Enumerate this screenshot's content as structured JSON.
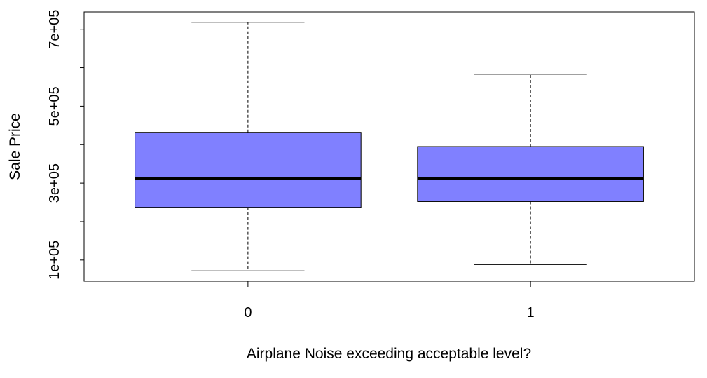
{
  "chart_data": {
    "type": "boxplot",
    "title": "",
    "xlabel": "Airplane Noise exceeding acceptable level?",
    "ylabel": "Sale Price",
    "ylim": [
      45000,
      745000
    ],
    "y_ticks": [
      100000,
      200000,
      300000,
      400000,
      500000,
      600000,
      700000
    ],
    "y_tick_labels": [
      {
        "value": 100000,
        "label": "1e+05"
      },
      {
        "value": 300000,
        "label": "3e+05"
      },
      {
        "value": 500000,
        "label": "5e+05"
      },
      {
        "value": 700000,
        "label": "7e+05"
      }
    ],
    "categories": [
      "0",
      "1"
    ],
    "boxes": [
      {
        "category": "0",
        "whisker_low": 72000,
        "q1": 237000,
        "median": 313000,
        "q3": 432000,
        "whisker_high": 718000
      },
      {
        "category": "1",
        "whisker_low": 88000,
        "q1": 252000,
        "median": 313000,
        "q3": 395000,
        "whisker_high": 583000
      }
    ],
    "box_fill": "#8080ff",
    "grid": false,
    "legend": "none"
  }
}
